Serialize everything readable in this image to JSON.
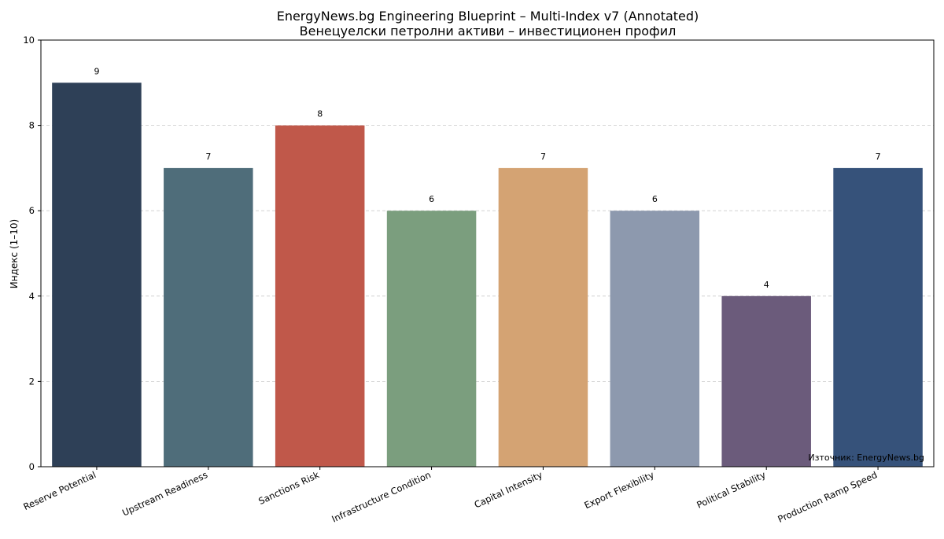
{
  "chart_data": {
    "type": "bar",
    "title": "EnergyNews.bg Engineering Blueprint – Multi-Index v7 (Annotated)",
    "subtitle": "Венецуелски петролни активи – инвестиционен профил",
    "xlabel": "",
    "ylabel": "Индекс (1–10)",
    "ylim": [
      0,
      10
    ],
    "yticks": [
      0,
      2,
      4,
      6,
      8,
      10
    ],
    "grid": "horizontal dashed",
    "categories": [
      "Reserve Potential",
      "Upstream Readiness",
      "Sanctions Risk",
      "Infrastructure Condition",
      "Capital Intensity",
      "Export Flexibility",
      "Political Stability",
      "Production Ramp Speed"
    ],
    "values": [
      9,
      7,
      8,
      6,
      7,
      6,
      4,
      7
    ],
    "colors": [
      "#2e4057",
      "#4f6d7a",
      "#c0584a",
      "#7b9e7e",
      "#d4a373",
      "#8d99ae",
      "#6b5b7b",
      "#36527a"
    ],
    "annotation": "Източник: EnergyNews.bg"
  }
}
